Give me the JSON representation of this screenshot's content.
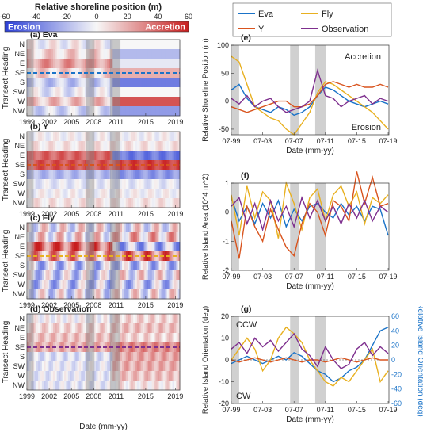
{
  "colorbar": {
    "title": "Relative shoreline position (m)",
    "ticks": [
      -60,
      -40,
      -20,
      0,
      20,
      40,
      60
    ],
    "range": [
      -60,
      60
    ],
    "left_label": "Erosion",
    "right_label": "Accretion",
    "colors": {
      "low": "#2b3fd6",
      "mid": "#f7f7f7",
      "high": "#c81e1e"
    }
  },
  "heatmaps": [
    {
      "title": "(a) Eva",
      "dash_heading": "SE",
      "dash_color": "#1a73c8"
    },
    {
      "title": "(b) Y",
      "dash_heading": "SE",
      "dash_color": "#d9541e"
    },
    {
      "title": "(c) Fly",
      "dash_heading": "SE",
      "dash_color": "#e8b020"
    },
    {
      "title": "(d) Observation",
      "dash_heading": "SE",
      "dash_color": "#7e2f8e"
    }
  ],
  "heatmap_axes": {
    "ylabel": "Transect Heading",
    "headings": [
      "N",
      "NE",
      "E",
      "SE",
      "S",
      "SW",
      "W",
      "NW"
    ],
    "xticks": [
      1999,
      2002,
      2005,
      2008,
      2011,
      2015,
      2019
    ],
    "xlabel": "Date (mm-yy)",
    "xrange": [
      1999,
      2019.6
    ],
    "shaded_periods": [
      [
        1999.1,
        1999.9
      ],
      [
        2007.0,
        2008.1
      ],
      [
        2010.2,
        2011.6
      ]
    ]
  },
  "legend": {
    "entries": [
      {
        "name": "Eva",
        "color": "#1a73c8"
      },
      {
        "name": "Fly",
        "color": "#e8b020"
      },
      {
        "name": "Y",
        "color": "#d9541e"
      },
      {
        "name": "Observation",
        "color": "#7e2f8e"
      }
    ]
  },
  "line_axes": {
    "xticks": [
      "07-99",
      "07-03",
      "07-07",
      "07-11",
      "07-15",
      "07-19"
    ],
    "xtick_values": [
      1999.5,
      2003.5,
      2007.5,
      2011.5,
      2015.5,
      2019.5
    ],
    "xrange": [
      1999.5,
      2019.6
    ],
    "xlabel": "Date (mm-yy)",
    "shaded_periods": [
      [
        1999.6,
        2000.5
      ],
      [
        2007.0,
        2008.1
      ],
      [
        2010.2,
        2011.6
      ]
    ]
  },
  "chart_data": [
    {
      "type": "line",
      "title": "(e)",
      "ylabel": "Relative Shoreline Position (m)",
      "ylim": [
        -60,
        100
      ],
      "yticks": [
        -50,
        0,
        50,
        100
      ],
      "annotations": [
        "Accretion",
        "Erosion"
      ],
      "x": [
        1999.5,
        2000.5,
        2001.5,
        2002.5,
        2003.5,
        2004.5,
        2005.5,
        2006.5,
        2007.5,
        2008.5,
        2009.5,
        2010.5,
        2011.5,
        2012.5,
        2013.5,
        2014.5,
        2015.5,
        2016.5,
        2017.5,
        2018.5,
        2019.5
      ],
      "series": [
        {
          "name": "Eva",
          "values": [
            20,
            30,
            5,
            -10,
            -15,
            -20,
            -10,
            -15,
            -25,
            -20,
            -10,
            10,
            25,
            20,
            10,
            0,
            -5,
            -10,
            -5,
            0,
            -5
          ]
        },
        {
          "name": "Fly",
          "values": [
            80,
            70,
            30,
            -10,
            -20,
            -30,
            -35,
            -50,
            -60,
            -40,
            -20,
            15,
            35,
            30,
            20,
            10,
            0,
            -10,
            -20,
            -35,
            -50
          ]
        },
        {
          "name": "Y",
          "values": [
            -10,
            -15,
            -20,
            -15,
            -10,
            -5,
            0,
            0,
            -10,
            -10,
            -5,
            10,
            30,
            35,
            30,
            25,
            30,
            25,
            25,
            30,
            25
          ]
        },
        {
          "name": "Observation",
          "values": [
            5,
            -5,
            10,
            -10,
            0,
            5,
            -10,
            -20,
            -15,
            -10,
            0,
            55,
            10,
            5,
            -10,
            0,
            5,
            10,
            -5,
            5,
            0
          ]
        }
      ]
    },
    {
      "type": "line",
      "title": "(f)",
      "ylabel": "Relative Island Area (10^4 m^2)",
      "ylim": [
        -2,
        1
      ],
      "yticks": [
        -2,
        -1,
        0,
        1
      ],
      "x": [
        1999.5,
        2000.5,
        2001.5,
        2002.5,
        2003.5,
        2004.5,
        2005.5,
        2006.5,
        2007.5,
        2008.5,
        2009.5,
        2010.5,
        2011.5,
        2012.5,
        2013.5,
        2014.5,
        2015.5,
        2016.5,
        2017.5,
        2018.5,
        2019.5
      ],
      "series": [
        {
          "name": "Eva",
          "values": [
            0.5,
            -0.3,
            0.2,
            -0.4,
            0.3,
            -0.2,
            0.4,
            -0.5,
            0.1,
            -0.3,
            0.2,
            0.3,
            0.0,
            -0.2,
            0.3,
            -0.1,
            0.2,
            -0.3,
            0.2,
            0.1,
            -0.8
          ]
        },
        {
          "name": "Fly",
          "values": [
            0.6,
            -0.8,
            0.9,
            -0.2,
            0.7,
            0.4,
            -0.9,
            1.0,
            0.3,
            -0.6,
            0.5,
            0.8,
            -0.3,
            0.6,
            0.9,
            0.2,
            0.7,
            -0.4,
            0.5,
            0.3,
            0.6
          ]
        },
        {
          "name": "Y",
          "values": [
            -0.3,
            -1.6,
            0.2,
            -0.5,
            -1.0,
            0.1,
            -0.6,
            -1.2,
            -1.5,
            -0.4,
            0.3,
            0.0,
            -0.8,
            0.4,
            0.2,
            -0.3,
            1.4,
            0.3,
            1.2,
            0.2,
            0.3
          ]
        },
        {
          "name": "Observation",
          "values": [
            0.2,
            0.5,
            -0.4,
            0.3,
            -0.6,
            0.4,
            -0.3,
            0.2,
            -0.5,
            0.5,
            -0.2,
            0.4,
            -0.3,
            0.2,
            -0.4,
            0.3,
            -0.2,
            0.4,
            -0.3,
            0.2,
            0.0
          ]
        }
      ]
    },
    {
      "type": "line",
      "title": "(g)",
      "ylabel": "Relative Island Orientation (deg)",
      "ylabel_right": "Relative Island Orientation (deg)",
      "ylim": [
        -20,
        20
      ],
      "yticks": [
        -20,
        -10,
        0,
        10,
        20
      ],
      "ylim_right": [
        -60,
        60
      ],
      "yticks_right": [
        -60,
        -40,
        -20,
        0,
        20,
        40,
        60
      ],
      "annotations": [
        "CCW",
        "CW"
      ],
      "x": [
        1999.5,
        2000.5,
        2001.5,
        2002.5,
        2003.5,
        2004.5,
        2005.5,
        2006.5,
        2007.5,
        2008.5,
        2009.5,
        2010.5,
        2011.5,
        2012.5,
        2013.5,
        2014.5,
        2015.5,
        2016.5,
        2017.5,
        2018.5,
        2019.5
      ],
      "series": [
        {
          "name": "Eva",
          "axis": "right",
          "values": [
            -5,
            0,
            5,
            0,
            -5,
            0,
            5,
            0,
            10,
            5,
            -5,
            -15,
            -20,
            -30,
            -25,
            -15,
            -10,
            0,
            20,
            40,
            45
          ]
        },
        {
          "name": "Fly",
          "axis": "left",
          "values": [
            0,
            5,
            10,
            5,
            -5,
            0,
            10,
            15,
            12,
            8,
            0,
            -5,
            -10,
            -12,
            -8,
            -10,
            -5,
            0,
            5,
            -10,
            -5
          ]
        },
        {
          "name": "Y",
          "axis": "left",
          "values": [
            0,
            -1,
            0,
            1,
            0,
            -1,
            0,
            1,
            0,
            -1,
            0,
            0,
            -1,
            0,
            1,
            0,
            -1,
            0,
            1,
            0,
            0
          ]
        },
        {
          "name": "Observation",
          "axis": "left",
          "values": [
            5,
            8,
            3,
            10,
            6,
            9,
            4,
            8,
            12,
            5,
            2,
            -3,
            6,
            0,
            -4,
            -2,
            5,
            8,
            2,
            6,
            3
          ]
        }
      ]
    }
  ]
}
